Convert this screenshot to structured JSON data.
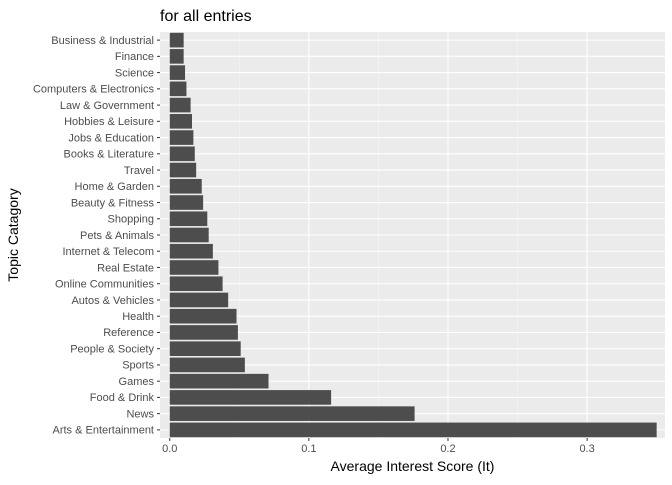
{
  "chart_data": {
    "type": "bar",
    "orientation": "horizontal",
    "title": "for all entries",
    "xlabel": "Average Interest Score (It)",
    "ylabel": "Topic Catagory",
    "xlim": [
      -0.007,
      0.356
    ],
    "x_ticks": [
      0.0,
      0.1,
      0.2,
      0.3
    ],
    "x_tick_labels": [
      "0.0",
      "0.1",
      "0.2",
      "0.3"
    ],
    "grid": true,
    "legend": "none",
    "categories": [
      "Business & Industrial",
      "Finance",
      "Science",
      "Computers & Electronics",
      "Law & Government",
      "Hobbies & Leisure",
      "Jobs & Education",
      "Books & Literature",
      "Travel",
      "Home & Garden",
      "Beauty & Fitness",
      "Shopping",
      "Pets & Animals",
      "Internet & Telecom",
      "Real Estate",
      "Online Communities",
      "Autos & Vehicles",
      "Health",
      "Reference",
      "People & Society",
      "Sports",
      "Games",
      "Food & Drink",
      "News",
      "Arts & Entertainment"
    ],
    "values": [
      0.01,
      0.01,
      0.011,
      0.012,
      0.015,
      0.016,
      0.017,
      0.018,
      0.019,
      0.023,
      0.024,
      0.027,
      0.028,
      0.031,
      0.035,
      0.038,
      0.042,
      0.048,
      0.049,
      0.051,
      0.054,
      0.071,
      0.116,
      0.176,
      0.35
    ],
    "colors": {
      "panel": "#EBEBEB",
      "grid_major": "#FFFFFF",
      "grid_minor": "#F5F5F5",
      "bar": "#4D4D4D",
      "tick_text": "#4D4D4D",
      "axis_title": "#000000",
      "tick_mark": "#333333"
    }
  }
}
